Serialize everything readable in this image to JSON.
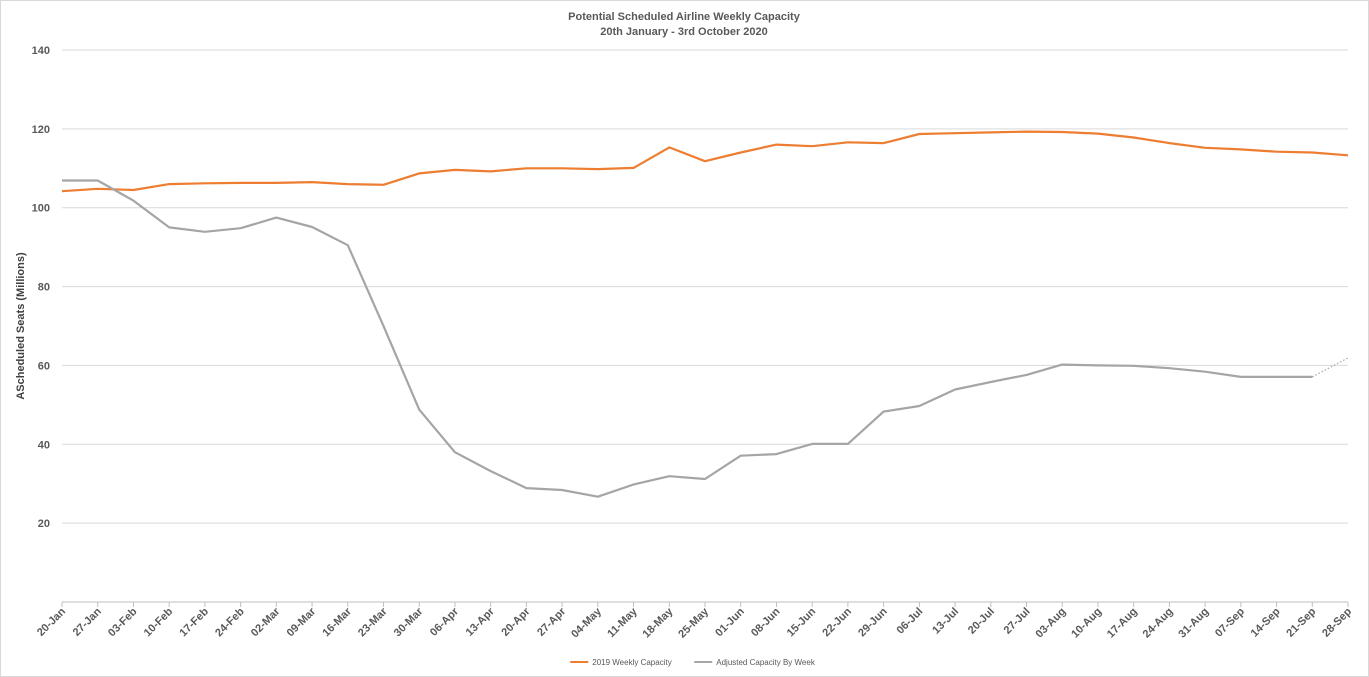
{
  "chart_data": {
    "type": "line",
    "title": "Potential Scheduled Airline Weekly Capacity",
    "subtitle": "20th January - 3rd October 2020",
    "xlabel": "",
    "ylabel": "AScheduled Seats (Millions)",
    "ylim": [
      0,
      140
    ],
    "yticks": [
      20,
      40,
      60,
      80,
      100,
      120,
      140
    ],
    "grid": true,
    "legend_position": "bottom",
    "categories": [
      "20-Jan",
      "27-Jan",
      "03-Feb",
      "10-Feb",
      "17-Feb",
      "24-Feb",
      "02-Mar",
      "09-Mar",
      "16-Mar",
      "23-Mar",
      "30-Mar",
      "06-Apr",
      "13-Apr",
      "20-Apr",
      "27-Apr",
      "04-May",
      "11-May",
      "18-May",
      "25-May",
      "01-Jun",
      "08-Jun",
      "15-Jun",
      "22-Jun",
      "29-Jun",
      "06-Jul",
      "13-Jul",
      "20-Jul",
      "27-Jul",
      "03-Aug",
      "10-Aug",
      "17-Aug",
      "24-Aug",
      "31-Aug",
      "07-Sep",
      "14-Sep",
      "21-Sep",
      "28-Sep"
    ],
    "series": [
      {
        "name": "2019 Weekly Capacity",
        "color": "#ed7d31",
        "values": [
          104.2,
          104.8,
          104.5,
          106.0,
          106.2,
          106.3,
          106.3,
          106.5,
          106.0,
          105.8,
          108.7,
          109.6,
          109.2,
          110.0,
          110.0,
          109.8,
          110.1,
          115.3,
          111.8,
          114.0,
          116.0,
          115.6,
          116.6,
          116.4,
          118.7,
          118.9,
          119.1,
          119.3,
          119.2,
          118.8,
          117.8,
          116.4,
          115.2,
          114.8,
          114.2,
          114.0,
          113.3
        ]
      },
      {
        "name": "Adjusted Capacity By Week",
        "color": "#a5a5a5",
        "values": [
          106.9,
          106.9,
          101.8,
          95.0,
          93.9,
          94.8,
          97.5,
          95.1,
          90.5,
          70.0,
          48.8,
          38.0,
          33.2,
          28.9,
          28.4,
          26.7,
          29.8,
          31.9,
          31.2,
          37.1,
          37.5,
          40.1,
          40.1,
          48.3,
          49.7,
          53.9,
          55.8,
          57.6,
          60.2,
          60.0,
          59.9,
          59.3,
          58.4,
          57.1,
          57.1,
          57.1,
          61.9
        ]
      }
    ],
    "dotted_final_segment_series": "Adjusted Capacity By Week"
  }
}
